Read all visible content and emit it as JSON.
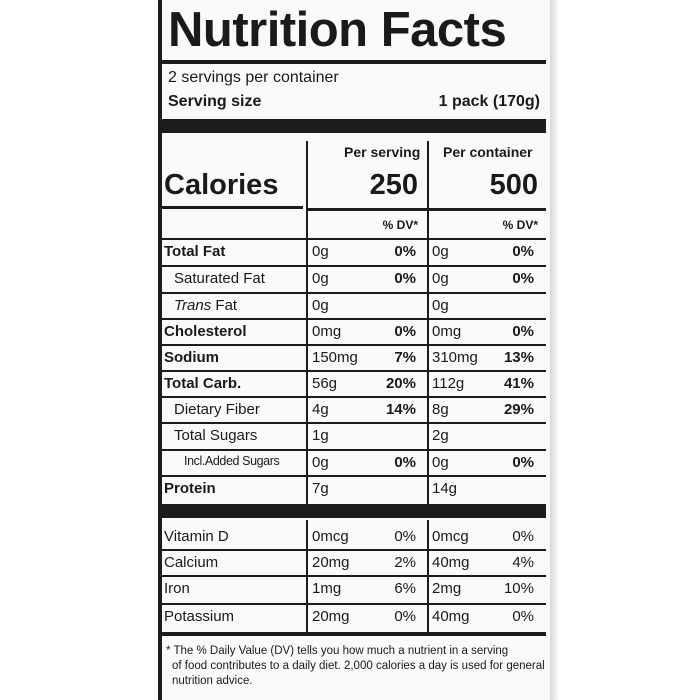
{
  "title": "Nutrition Facts",
  "servings_per_container": "2 servings per container",
  "serving_size_label": "Serving size",
  "serving_size_value": "1 pack (170g)",
  "col_per_serving": "Per serving",
  "col_per_container": "Per container",
  "calories_label": "Calories",
  "calories_serving": "250",
  "calories_container": "500",
  "dv_header": "% DV*",
  "nutrients": [
    {
      "name": "Total Fat",
      "bold": true,
      "italic_prefix": "",
      "serving_amt": "0g",
      "serving_dv": "0%",
      "container_amt": "0g",
      "container_dv": "0%"
    },
    {
      "name": "Saturated Fat",
      "bold": false,
      "italic_prefix": "",
      "serving_amt": "0g",
      "serving_dv": "0%",
      "container_amt": "0g",
      "container_dv": "0%"
    },
    {
      "name": "Fat",
      "bold": false,
      "italic_prefix": "Trans",
      "serving_amt": "0g",
      "serving_dv": "",
      "container_amt": "0g",
      "container_dv": ""
    },
    {
      "name": "Cholesterol",
      "bold": true,
      "italic_prefix": "",
      "serving_amt": "0mg",
      "serving_dv": "0%",
      "container_amt": "0mg",
      "container_dv": "0%"
    },
    {
      "name": "Sodium",
      "bold": true,
      "italic_prefix": "",
      "serving_amt": "150mg",
      "serving_dv": "7%",
      "container_amt": "310mg",
      "container_dv": "13%"
    },
    {
      "name": "Total Carb.",
      "bold": true,
      "italic_prefix": "",
      "serving_amt": "56g",
      "serving_dv": "20%",
      "container_amt": "112g",
      "container_dv": "41%"
    },
    {
      "name": "Dietary Fiber",
      "bold": false,
      "italic_prefix": "",
      "serving_amt": "4g",
      "serving_dv": "14%",
      "container_amt": "8g",
      "container_dv": "29%"
    },
    {
      "name": "Total Sugars",
      "bold": false,
      "italic_prefix": "",
      "serving_amt": "1g",
      "serving_dv": "",
      "container_amt": "2g",
      "container_dv": ""
    },
    {
      "name": "Incl.Added Sugars",
      "bold": false,
      "italic_prefix": "",
      "serving_amt": "0g",
      "serving_dv": "0%",
      "container_amt": "0g",
      "container_dv": "0%"
    },
    {
      "name": "Protein",
      "bold": true,
      "italic_prefix": "",
      "serving_amt": "7g",
      "serving_dv": "",
      "container_amt": "14g",
      "container_dv": ""
    }
  ],
  "vitamins": [
    {
      "name": "Vitamin D",
      "serving_amt": "0mcg",
      "serving_dv": "0%",
      "container_amt": "0mcg",
      "container_dv": "0%"
    },
    {
      "name": "Calcium",
      "serving_amt": "20mg",
      "serving_dv": "2%",
      "container_amt": "40mg",
      "container_dv": "4%"
    },
    {
      "name": "Iron",
      "serving_amt": "1mg",
      "serving_dv": "6%",
      "container_amt": "2mg",
      "container_dv": "10%"
    },
    {
      "name": "Potassium",
      "serving_amt": "20mg",
      "serving_dv": "0%",
      "container_amt": "40mg",
      "container_dv": "0%"
    }
  ],
  "footnote_lines": [
    "* The % Daily Value (DV) tells you how much a nutrient in a serving",
    "of food contributes to a daily diet. 2,000 calories a day is used for general",
    "nutrition advice."
  ]
}
